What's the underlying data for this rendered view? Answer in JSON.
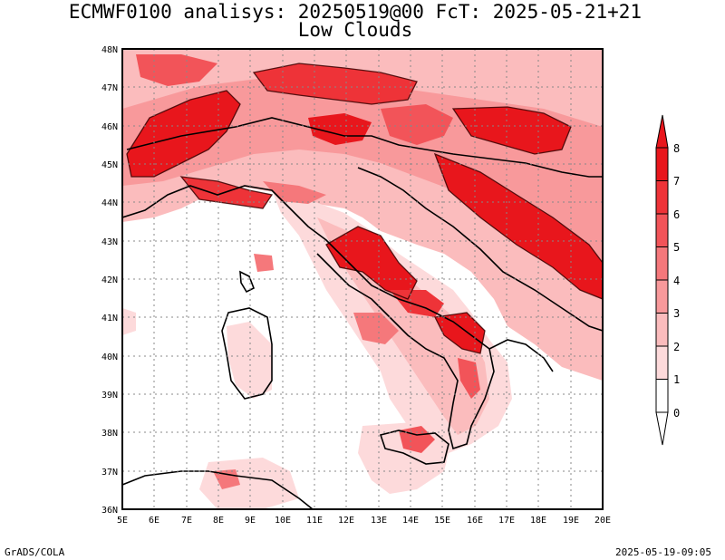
{
  "header": {
    "title_line1": "ECMWF0100 analisys: 20250519@00 FcT: 2025-05-21+21",
    "title_line2": "Low Clouds"
  },
  "map": {
    "lon_labels": [
      "5E",
      "6E",
      "7E",
      "8E",
      "9E",
      "10E",
      "11E",
      "12E",
      "13E",
      "14E",
      "15E",
      "16E",
      "17E",
      "18E",
      "19E",
      "20E"
    ],
    "lat_labels": [
      "48N",
      "47N",
      "46N",
      "45N",
      "44N",
      "43N",
      "42N",
      "41N",
      "40N",
      "39N",
      "38N",
      "37N",
      "36N"
    ],
    "lon_range": [
      5,
      20
    ],
    "lat_range": [
      36,
      48
    ],
    "grid": "dotted"
  },
  "colorbar": {
    "labels": [
      "8",
      "7",
      "6",
      "5",
      "4",
      "3",
      "2",
      "1",
      "0"
    ],
    "colors": [
      "#e8161c",
      "#ee3338",
      "#f25459",
      "#f5787b",
      "#f8999b",
      "#fbbcbd",
      "#fddadb",
      "#ffffff"
    ]
  },
  "footer": {
    "left": "GrADS/COLA",
    "right": "2025-05-19-09:05"
  }
}
